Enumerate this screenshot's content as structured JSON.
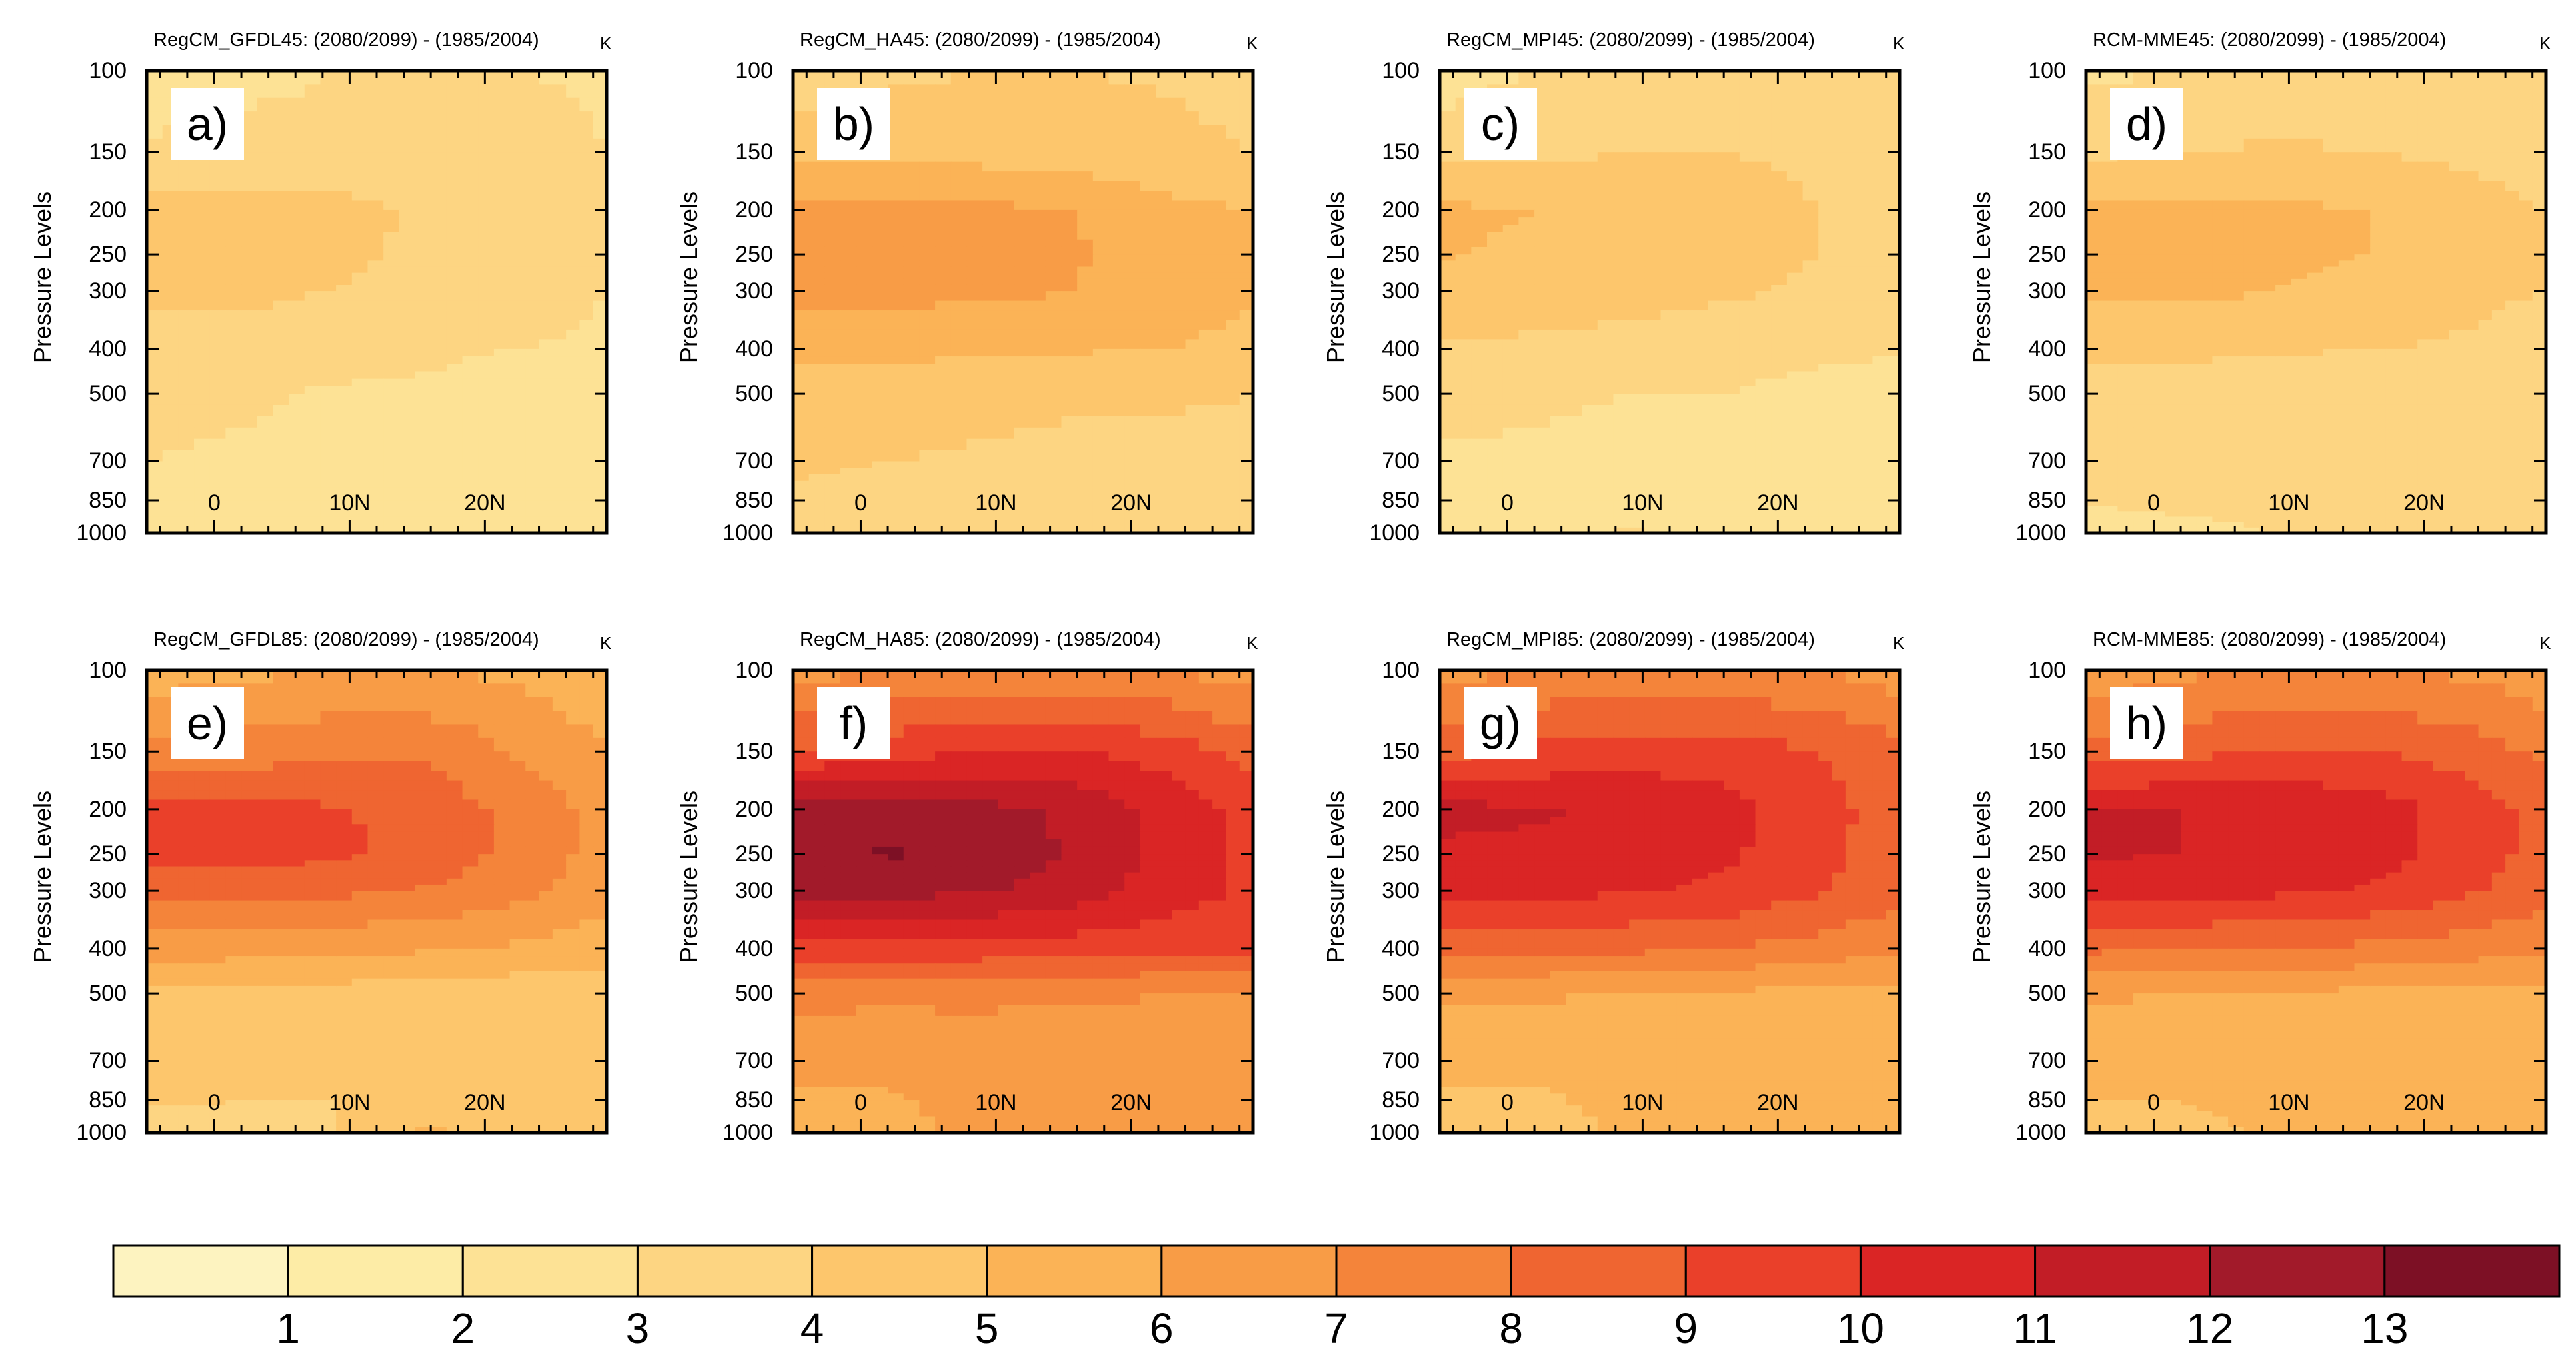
{
  "chart_data": {
    "type": "heatmap",
    "variable_unit": "K",
    "x_ticks": [
      "0",
      "10N",
      "20N"
    ],
    "x_tick_values": [
      0,
      10,
      20
    ],
    "xlim": [
      -5,
      29
    ],
    "y_label": "Pressure   Levels",
    "y_ticks": [
      "100",
      "150",
      "200",
      "250",
      "300",
      "400",
      "500",
      "700",
      "850",
      "1000"
    ],
    "y_tick_values": [
      100,
      150,
      200,
      250,
      300,
      400,
      500,
      700,
      850,
      1000
    ],
    "ylim": [
      1000,
      100
    ],
    "y_scale": "log-pressure",
    "colorbar": {
      "levels": [
        1,
        2,
        3,
        4,
        5,
        6,
        7,
        8,
        9,
        10,
        11,
        12,
        13
      ],
      "colors": [
        "#fdf3c0",
        "#fdeca6",
        "#fde295",
        "#fdd582",
        "#fdc66c",
        "#fbb356",
        "#f89c46",
        "#f4843a",
        "#ef6531",
        "#ea402a",
        "#da2525",
        "#c21d26",
        "#a21a2a",
        "#7d1025"
      ]
    },
    "panels": [
      {
        "label": "a)",
        "title": "RegCM_GFDL45: (2080/2099) - (1985/2004)",
        "pressure": [
          100,
          150,
          200,
          250,
          300,
          400,
          500,
          700,
          850,
          1000
        ],
        "values": [
          [
            2.2,
            2.6,
            3.0,
            3.0,
            3.0,
            2.9
          ],
          [
            3.2,
            3.4,
            3.5,
            3.4,
            3.3,
            3.0
          ],
          [
            4.3,
            4.3,
            4.2,
            3.9,
            3.5,
            3.2
          ],
          [
            4.3,
            4.3,
            4.2,
            3.8,
            3.4,
            3.1
          ],
          [
            4.2,
            4.2,
            4.0,
            3.7,
            3.3,
            3.0
          ],
          [
            3.7,
            3.6,
            3.4,
            3.2,
            3.0,
            2.9
          ],
          [
            3.2,
            3.1,
            2.9,
            2.8,
            2.3,
            2.3
          ],
          [
            3.0,
            2.9,
            2.8,
            2.7,
            2.6,
            2.5
          ],
          [
            2.8,
            2.7,
            2.7,
            2.6,
            2.5,
            2.5
          ],
          [
            2.3,
            2.6,
            2.7,
            2.7,
            2.6,
            2.5
          ]
        ]
      },
      {
        "label": "b)",
        "title": "RegCM_HA45: (2080/2099) - (1985/2004)",
        "pressure": [
          100,
          150,
          200,
          250,
          300,
          400,
          500,
          700,
          850,
          1000
        ],
        "values": [
          [
            3.4,
            3.8,
            4.0,
            4.0,
            3.9,
            3.7
          ],
          [
            4.6,
            4.7,
            4.6,
            4.5,
            4.2,
            4.0
          ],
          [
            6.3,
            6.3,
            6.2,
            6.0,
            5.2,
            5.0
          ],
          [
            6.4,
            6.4,
            6.3,
            6.1,
            5.3,
            5.1
          ],
          [
            6.3,
            6.3,
            6.2,
            6.0,
            5.3,
            5.1
          ],
          [
            5.3,
            5.3,
            5.2,
            5.1,
            5.0,
            4.8
          ],
          [
            4.4,
            4.3,
            4.2,
            4.1,
            4.1,
            4.0
          ],
          [
            4.1,
            4.0,
            3.9,
            3.8,
            3.8,
            3.7
          ],
          [
            3.9,
            3.8,
            3.8,
            3.8,
            3.7,
            3.6
          ],
          [
            3.5,
            3.6,
            3.7,
            3.7,
            3.6,
            3.5
          ]
        ]
      },
      {
        "label": "c)",
        "title": "RegCM_MPI45: (2080/2099) - (1985/2004)",
        "pressure": [
          100,
          150,
          200,
          250,
          300,
          400,
          500,
          700,
          850,
          1000
        ],
        "values": [
          [
            2.5,
            3.0,
            3.3,
            3.5,
            3.6,
            3.5
          ],
          [
            3.6,
            3.8,
            4.0,
            4.0,
            3.9,
            3.7
          ],
          [
            5.2,
            5.0,
            4.6,
            4.3,
            4.0,
            3.8
          ],
          [
            5.1,
            4.8,
            4.5,
            4.2,
            4.0,
            3.8
          ],
          [
            4.6,
            4.5,
            4.3,
            4.1,
            3.9,
            3.7
          ],
          [
            3.9,
            3.8,
            3.7,
            3.6,
            3.3,
            3.1
          ],
          [
            3.2,
            3.1,
            3.0,
            3.0,
            2.6,
            2.4
          ],
          [
            2.9,
            2.9,
            2.8,
            2.8,
            2.6,
            2.4
          ],
          [
            2.6,
            2.7,
            2.7,
            2.7,
            2.6,
            2.4
          ],
          [
            2.3,
            2.6,
            3.1,
            2.7,
            2.6,
            2.4
          ]
        ]
      },
      {
        "label": "d)",
        "title": "RCM-MME45: (2080/2099) - (1985/2004)",
        "pressure": [
          100,
          150,
          200,
          250,
          300,
          400,
          500,
          700,
          850,
          1000
        ],
        "values": [
          [
            2.7,
            3.1,
            3.4,
            3.5,
            3.5,
            3.4
          ],
          [
            3.8,
            4.0,
            4.1,
            4.0,
            3.8,
            3.6
          ],
          [
            5.3,
            5.3,
            5.2,
            5.0,
            4.4,
            4.0
          ],
          [
            5.3,
            5.3,
            5.2,
            5.0,
            4.4,
            4.0
          ],
          [
            5.2,
            5.2,
            5.0,
            4.7,
            4.2,
            4.0
          ],
          [
            4.3,
            4.2,
            4.1,
            4.0,
            3.9,
            3.6
          ],
          [
            3.6,
            3.5,
            3.4,
            3.3,
            3.2,
            3.0
          ],
          [
            3.3,
            3.3,
            3.2,
            3.1,
            3.0,
            3.0
          ],
          [
            3.1,
            3.1,
            3.1,
            3.0,
            3.0,
            3.0
          ],
          [
            2.6,
            2.9,
            3.0,
            3.0,
            3.0,
            3.0
          ]
        ]
      },
      {
        "label": "e)",
        "title": "RegCM_GFDL85: (2080/2099) - (1985/2004)",
        "pressure": [
          100,
          150,
          200,
          250,
          300,
          400,
          500,
          700,
          850,
          1000
        ],
        "values": [
          [
            5.4,
            5.8,
            6.0,
            6.0,
            5.7,
            5.3
          ],
          [
            7.2,
            7.5,
            7.8,
            7.8,
            6.8,
            6.0
          ],
          [
            9.2,
            9.2,
            9.1,
            8.6,
            7.6,
            6.6
          ],
          [
            9.3,
            9.3,
            9.2,
            8.6,
            7.6,
            6.6
          ],
          [
            8.5,
            8.4,
            8.2,
            7.9,
            7.3,
            6.3
          ],
          [
            6.5,
            6.4,
            6.3,
            6.1,
            5.8,
            5.5
          ],
          [
            4.8,
            4.7,
            4.6,
            4.5,
            4.4,
            4.4
          ],
          [
            4.4,
            4.3,
            4.2,
            4.2,
            4.2,
            4.2
          ],
          [
            4.1,
            4.0,
            4.0,
            4.3,
            4.1,
            4.1
          ],
          [
            3.7,
            3.8,
            3.9,
            5.2,
            4.0,
            4.0
          ]
        ]
      },
      {
        "label": "f)",
        "title": "RegCM_HA85: (2080/2099) - (1985/2004)",
        "pressure": [
          100,
          150,
          200,
          250,
          300,
          400,
          500,
          700,
          850,
          1000
        ],
        "values": [
          [
            6.5,
            7.0,
            7.3,
            7.3,
            7.0,
            6.5
          ],
          [
            9.0,
            9.6,
            10.0,
            10.0,
            9.5,
            8.5
          ],
          [
            12.4,
            12.4,
            12.3,
            11.8,
            10.6,
            9.6
          ],
          [
            12.6,
            13.1,
            12.8,
            11.8,
            10.6,
            9.8
          ],
          [
            12.3,
            12.3,
            12.1,
            11.5,
            10.5,
            9.8
          ],
          [
            9.7,
            9.7,
            9.6,
            9.5,
            9.3,
            9.2
          ],
          [
            7.3,
            7.2,
            7.2,
            7.1,
            7.0,
            7.0
          ],
          [
            6.3,
            6.3,
            6.5,
            6.3,
            6.8,
            7.0
          ],
          [
            5.8,
            5.9,
            6.2,
            6.3,
            6.8,
            7.0
          ],
          [
            5.5,
            5.8,
            6.2,
            6.3,
            6.8,
            7.0
          ]
        ]
      },
      {
        "label": "g)",
        "title": "RegCM_MPI85: (2080/2099) - (1985/2004)",
        "pressure": [
          100,
          150,
          200,
          250,
          300,
          400,
          500,
          700,
          850,
          1000
        ],
        "values": [
          [
            6.6,
            7.1,
            7.3,
            7.3,
            7.0,
            6.5
          ],
          [
            8.6,
            9.2,
            9.5,
            9.5,
            9.0,
            8.3
          ],
          [
            11.3,
            11.1,
            10.8,
            10.4,
            9.4,
            8.5
          ],
          [
            10.8,
            10.8,
            10.6,
            10.2,
            9.3,
            8.4
          ],
          [
            10.4,
            10.3,
            10.1,
            9.8,
            9.1,
            8.3
          ],
          [
            8.4,
            8.3,
            8.2,
            8.0,
            7.6,
            7.2
          ],
          [
            6.2,
            6.1,
            6.0,
            5.9,
            5.7,
            5.6
          ],
          [
            5.3,
            5.2,
            5.3,
            5.4,
            5.6,
            5.3
          ],
          [
            4.8,
            4.9,
            5.2,
            5.4,
            5.5,
            5.2
          ],
          [
            4.4,
            4.7,
            5.1,
            5.4,
            5.5,
            5.2
          ]
        ]
      },
      {
        "label": "h)",
        "title": "RCM-MME85: (2080/2099) - (1985/2004)",
        "pressure": [
          100,
          150,
          200,
          250,
          300,
          400,
          500,
          700,
          850,
          1000
        ],
        "values": [
          [
            6.3,
            6.8,
            7.0,
            7.0,
            6.8,
            6.3
          ],
          [
            8.3,
            8.7,
            9.0,
            9.0,
            8.6,
            7.8
          ],
          [
            11.0,
            11.0,
            10.9,
            10.5,
            9.6,
            8.6
          ],
          [
            11.1,
            11.0,
            10.9,
            10.5,
            9.6,
            8.6
          ],
          [
            10.5,
            10.4,
            10.2,
            9.9,
            9.2,
            8.3
          ],
          [
            8.2,
            8.1,
            8.0,
            7.8,
            7.5,
            7.2
          ],
          [
            6.1,
            6.0,
            5.9,
            5.8,
            5.7,
            5.6
          ],
          [
            5.5,
            5.4,
            5.4,
            5.4,
            5.5,
            5.5
          ],
          [
            5.0,
            5.0,
            5.2,
            5.3,
            5.4,
            5.4
          ],
          [
            4.6,
            4.8,
            5.1,
            5.3,
            5.4,
            5.4
          ]
        ]
      }
    ],
    "x_points": [
      -5,
      2,
      9,
      16,
      23,
      29
    ]
  }
}
